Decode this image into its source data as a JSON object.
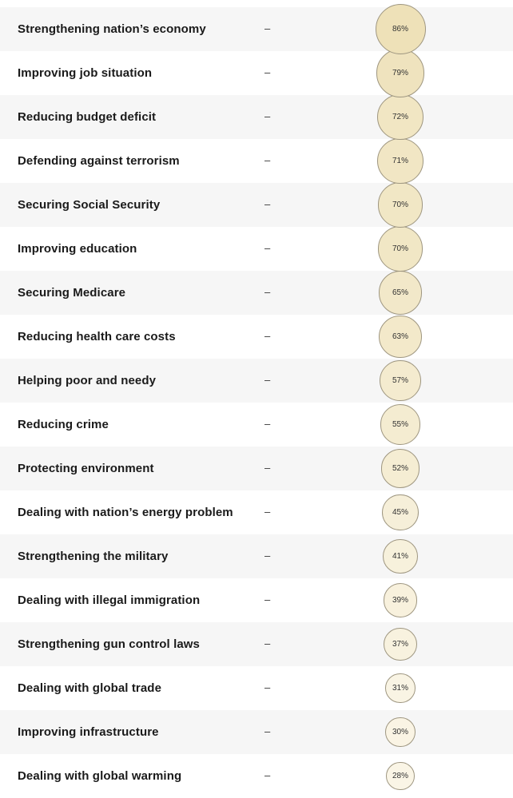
{
  "chart_data": {
    "type": "bubble-table",
    "rows": [
      {
        "label": "Strengthening nation’s economy",
        "secondary": "–",
        "value": 86,
        "value_label": "86%"
      },
      {
        "label": "Improving job situation",
        "secondary": "–",
        "value": 79,
        "value_label": "79%"
      },
      {
        "label": "Reducing budget deficit",
        "secondary": "–",
        "value": 72,
        "value_label": "72%"
      },
      {
        "label": "Defending against terrorism",
        "secondary": "–",
        "value": 71,
        "value_label": "71%"
      },
      {
        "label": "Securing Social Security",
        "secondary": "–",
        "value": 70,
        "value_label": "70%"
      },
      {
        "label": "Improving education",
        "secondary": "–",
        "value": 70,
        "value_label": "70%"
      },
      {
        "label": "Securing Medicare",
        "secondary": "–",
        "value": 65,
        "value_label": "65%"
      },
      {
        "label": "Reducing health care costs",
        "secondary": "–",
        "value": 63,
        "value_label": "63%"
      },
      {
        "label": "Helping poor and needy",
        "secondary": "–",
        "value": 57,
        "value_label": "57%"
      },
      {
        "label": "Reducing crime",
        "secondary": "–",
        "value": 55,
        "value_label": "55%"
      },
      {
        "label": "Protecting environment",
        "secondary": "–",
        "value": 52,
        "value_label": "52%"
      },
      {
        "label": "Dealing with nation’s energy problem",
        "secondary": "–",
        "value": 45,
        "value_label": "45%"
      },
      {
        "label": "Strengthening the military",
        "secondary": "–",
        "value": 41,
        "value_label": "41%"
      },
      {
        "label": "Dealing with illegal immigration",
        "secondary": "–",
        "value": 39,
        "value_label": "39%"
      },
      {
        "label": "Strengthening gun control laws",
        "secondary": "–",
        "value": 37,
        "value_label": "37%"
      },
      {
        "label": "Dealing with global trade",
        "secondary": "–",
        "value": 31,
        "value_label": "31%"
      },
      {
        "label": "Improving infrastructure",
        "secondary": "–",
        "value": 30,
        "value_label": "30%"
      },
      {
        "label": "Dealing with global warming",
        "secondary": "–",
        "value": 28,
        "value_label": "28%"
      }
    ],
    "colors": {
      "bubble_high": "#eee1b8",
      "bubble_low": "#faf5e6",
      "bubble_border": "#9e9680",
      "row_alt_bg": "#f6f6f6"
    }
  }
}
